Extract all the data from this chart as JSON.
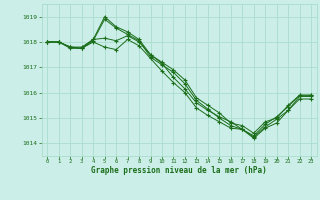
{
  "title": "Graphe pression niveau de la mer (hPa)",
  "bg_color": "#cceee8",
  "grid_color": "#aaddcc",
  "line_color": "#1a6e1a",
  "ylim": [
    1013.5,
    1019.5
  ],
  "xlim": [
    -0.5,
    23.5
  ],
  "yticks": [
    1014,
    1015,
    1016,
    1017,
    1018,
    1019
  ],
  "xticks": [
    0,
    1,
    2,
    3,
    4,
    5,
    6,
    7,
    8,
    9,
    10,
    11,
    12,
    13,
    14,
    15,
    16,
    17,
    18,
    19,
    20,
    21,
    22,
    23
  ],
  "series": [
    {
      "x": [
        0,
        1,
        2,
        3,
        4,
        5,
        6,
        7,
        8,
        9,
        10,
        11,
        12,
        13,
        14,
        15,
        16,
        17,
        18,
        19,
        20,
        21,
        22,
        23
      ],
      "y": [
        1018.0,
        1018.0,
        1017.8,
        1017.8,
        1018.1,
        1019.0,
        1018.6,
        1018.4,
        1018.1,
        1017.5,
        1017.2,
        1016.9,
        1016.5,
        1015.8,
        1015.5,
        1015.2,
        1014.8,
        1014.7,
        1014.4,
        1014.85,
        1015.0,
        1015.5,
        1015.9,
        1015.9
      ]
    },
    {
      "x": [
        0,
        1,
        2,
        3,
        4,
        5,
        6,
        7,
        8,
        9,
        10,
        11,
        12,
        13,
        14,
        15,
        16,
        17,
        18,
        19,
        20,
        21,
        22,
        23
      ],
      "y": [
        1018.0,
        1018.0,
        1017.8,
        1017.75,
        1018.05,
        1018.9,
        1018.55,
        1018.3,
        1018.05,
        1017.4,
        1017.1,
        1016.8,
        1016.35,
        1015.7,
        1015.35,
        1015.0,
        1014.7,
        1014.55,
        1014.2,
        1014.6,
        1014.8,
        1015.3,
        1015.75,
        1015.75
      ]
    },
    {
      "x": [
        0,
        1,
        2,
        3,
        4,
        5,
        6,
        7,
        8,
        9,
        10,
        11,
        12,
        13,
        14,
        15,
        16,
        17,
        18,
        19,
        20,
        21,
        22,
        23
      ],
      "y": [
        1018.0,
        1018.0,
        1017.8,
        1017.75,
        1018.1,
        1018.15,
        1018.05,
        1018.25,
        1018.0,
        1017.5,
        1017.15,
        1016.6,
        1016.15,
        1015.6,
        1015.3,
        1015.05,
        1014.85,
        1014.55,
        1014.3,
        1014.75,
        1015.05,
        1015.45,
        1015.9,
        1015.9
      ]
    },
    {
      "x": [
        0,
        1,
        2,
        3,
        4,
        5,
        6,
        7,
        8,
        9,
        10,
        11,
        12,
        13,
        14,
        15,
        16,
        17,
        18,
        19,
        20,
        21,
        22,
        23
      ],
      "y": [
        1018.0,
        1018.0,
        1017.75,
        1017.75,
        1018.0,
        1017.8,
        1017.7,
        1018.1,
        1017.85,
        1017.35,
        1016.85,
        1016.4,
        1016.0,
        1015.4,
        1015.1,
        1014.85,
        1014.6,
        1014.55,
        1014.25,
        1014.65,
        1014.95,
        1015.3,
        1015.85,
        1015.85
      ]
    }
  ]
}
